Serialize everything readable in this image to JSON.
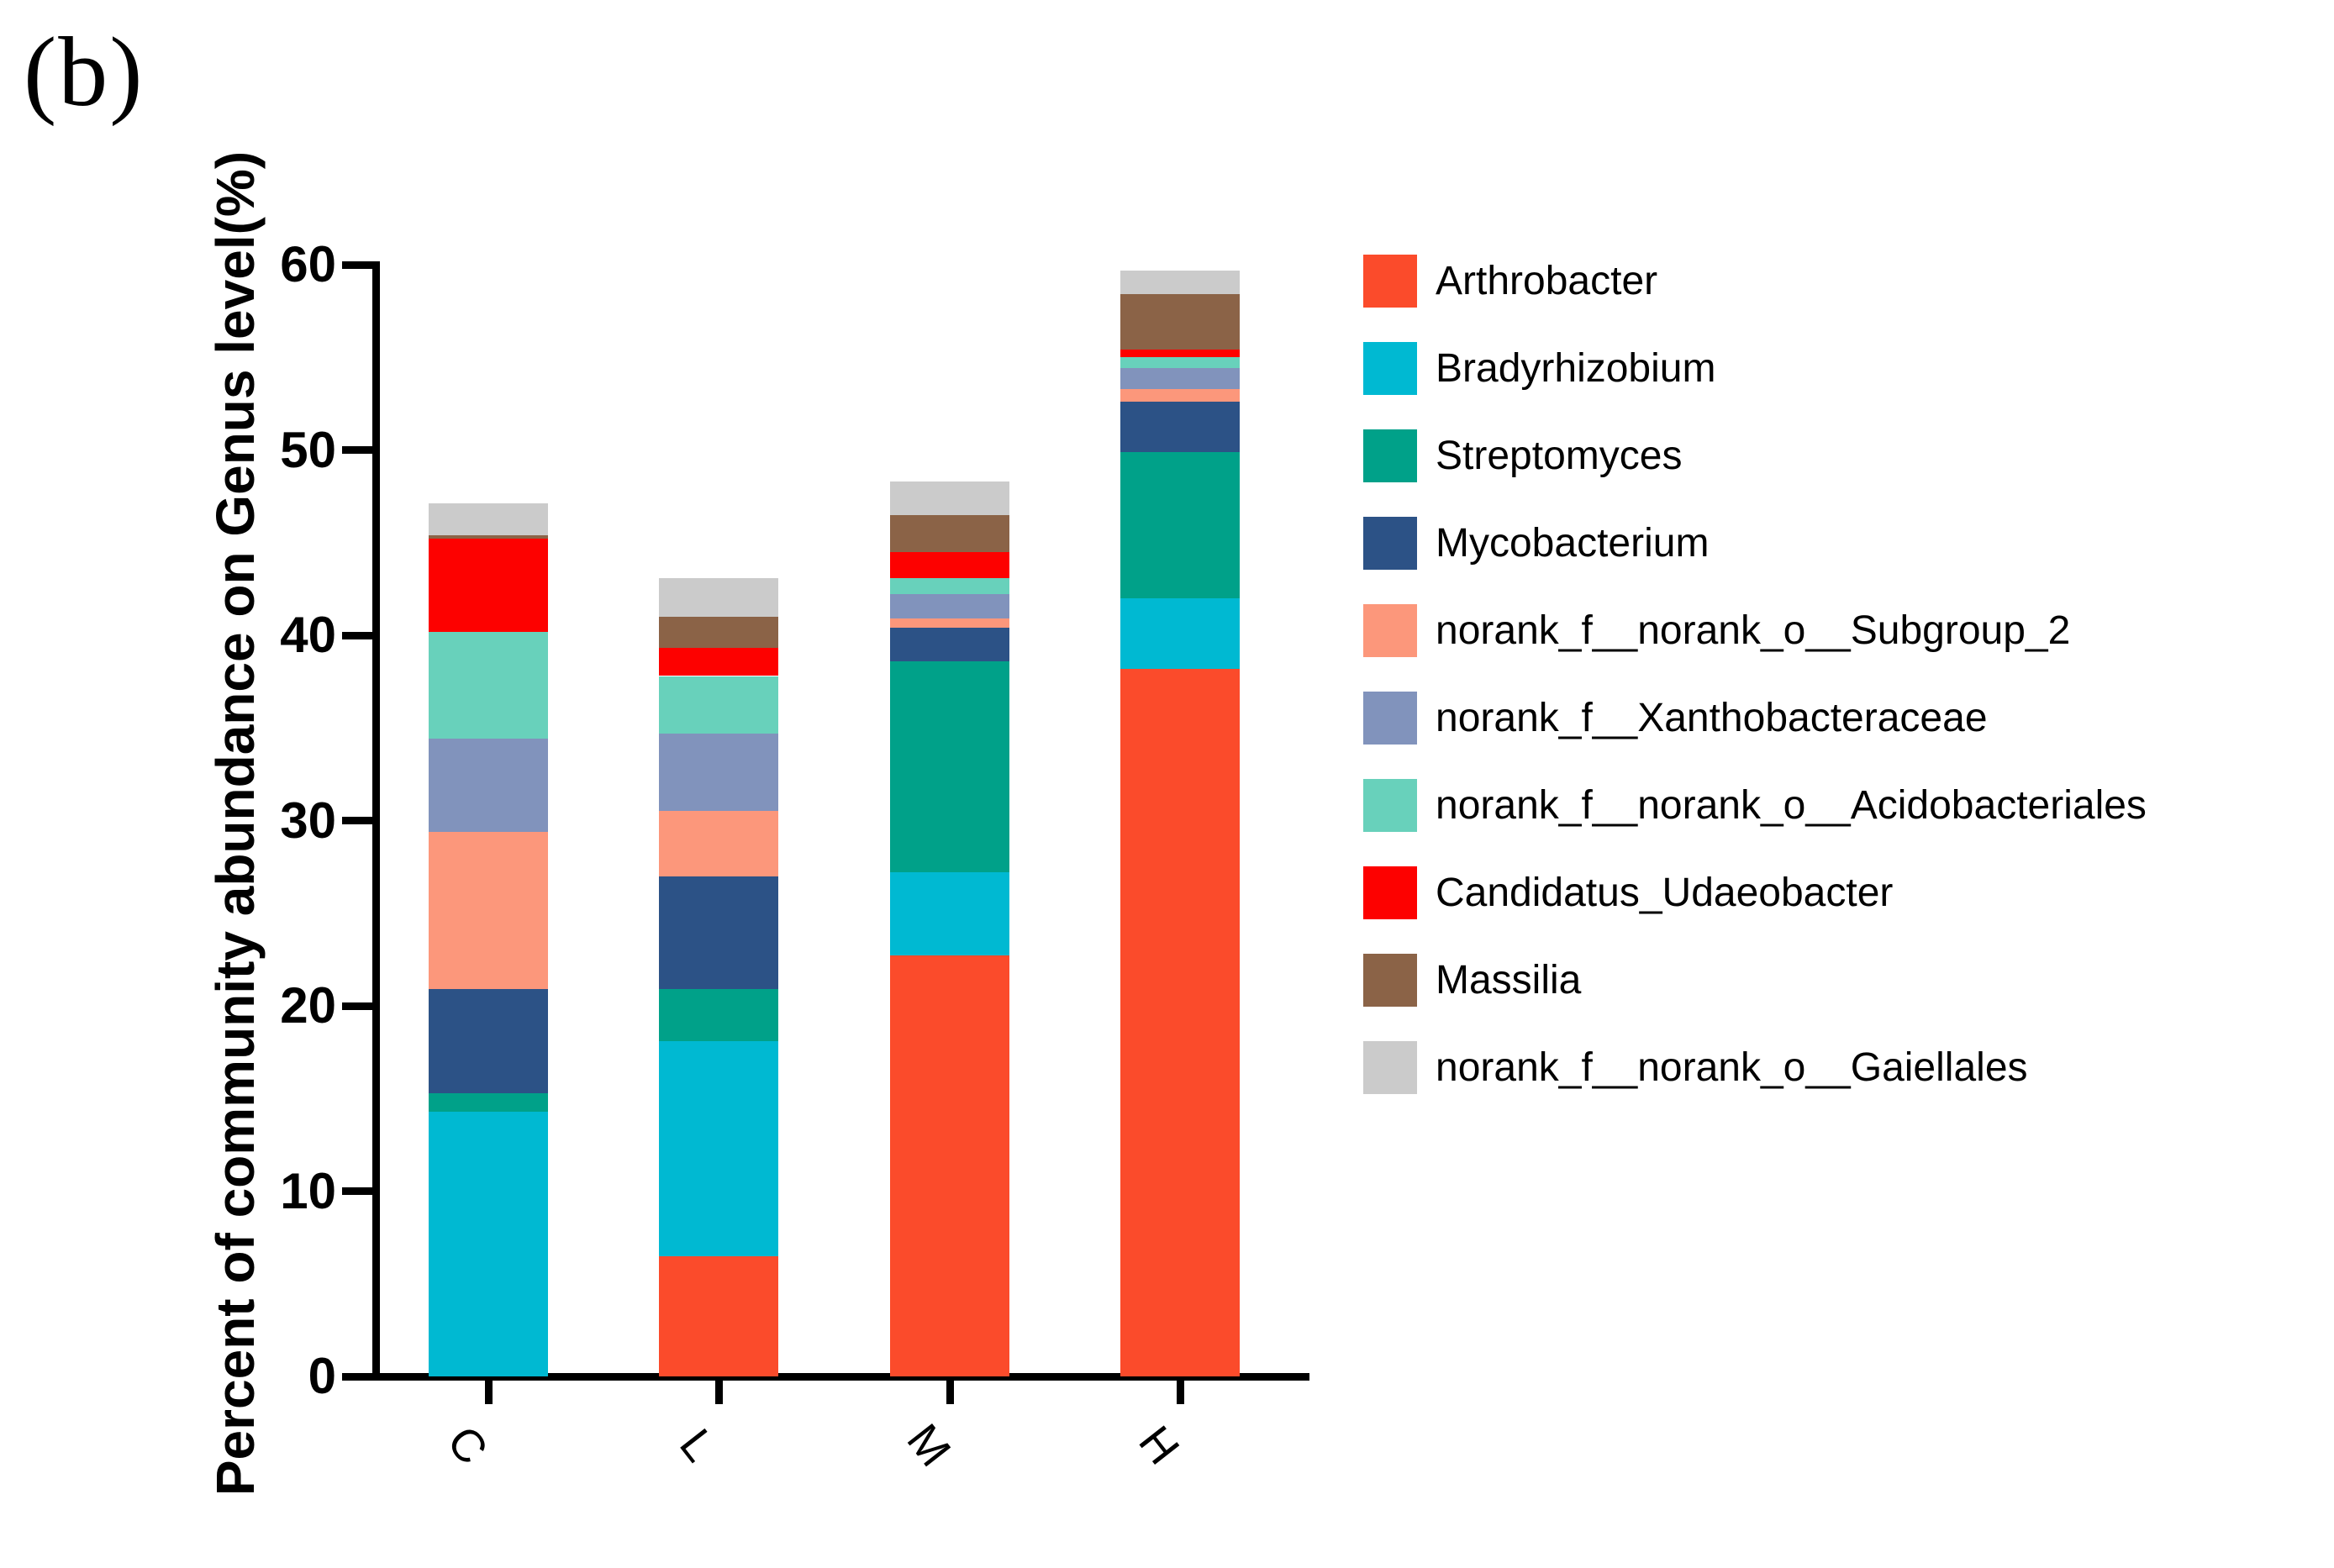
{
  "panel_label": "(b)",
  "chart_data": {
    "type": "bar",
    "stacked": true,
    "title": "",
    "xlabel": "",
    "ylabel": "Percent of community abundance on Genus level(%)",
    "categories": [
      "C",
      "L",
      "M",
      "H"
    ],
    "ylim": [
      0,
      60
    ],
    "yticks": [
      0,
      10,
      20,
      30,
      40,
      50,
      60
    ],
    "grid": false,
    "legend_position": "right",
    "series": [
      {
        "name": "Arthrobacter",
        "color": "#FB4B2B",
        "values": [
          0.0,
          6.5,
          22.7,
          38.2
        ]
      },
      {
        "name": "Bradyrhizobium",
        "color": "#00B9D2",
        "values": [
          14.3,
          11.6,
          4.5,
          3.8
        ]
      },
      {
        "name": "Streptomyces",
        "color": "#00A189",
        "values": [
          1.0,
          2.8,
          11.4,
          7.9
        ]
      },
      {
        "name": "Mycobacterium",
        "color": "#2C5286",
        "values": [
          5.6,
          6.1,
          1.8,
          2.7
        ]
      },
      {
        "name": "norank_f__norank_o__Subgroup_2",
        "color": "#FC977B",
        "values": [
          8.5,
          3.5,
          0.5,
          0.7
        ]
      },
      {
        "name": "norank_f__Xanthobacteraceae",
        "color": "#8193BC",
        "values": [
          5.0,
          4.2,
          1.3,
          1.1
        ]
      },
      {
        "name": "norank_f__norank_o__Acidobacteriales",
        "color": "#68D1BB",
        "values": [
          5.8,
          3.1,
          0.9,
          0.6
        ]
      },
      {
        "name": "Candidatus_Udaeobacter",
        "color": "#FD0100",
        "values": [
          5.0,
          1.5,
          1.4,
          0.4
        ]
      },
      {
        "name": "Massilia",
        "color": "#8B6347",
        "values": [
          0.2,
          1.7,
          2.0,
          3.0
        ]
      },
      {
        "name": "norank_f__norank_o__Gaiellales",
        "color": "#CBCBCB",
        "values": [
          1.7,
          2.1,
          1.8,
          1.3
        ]
      }
    ],
    "totals": [
      47.1,
      43.1,
      48.3,
      59.7
    ]
  }
}
